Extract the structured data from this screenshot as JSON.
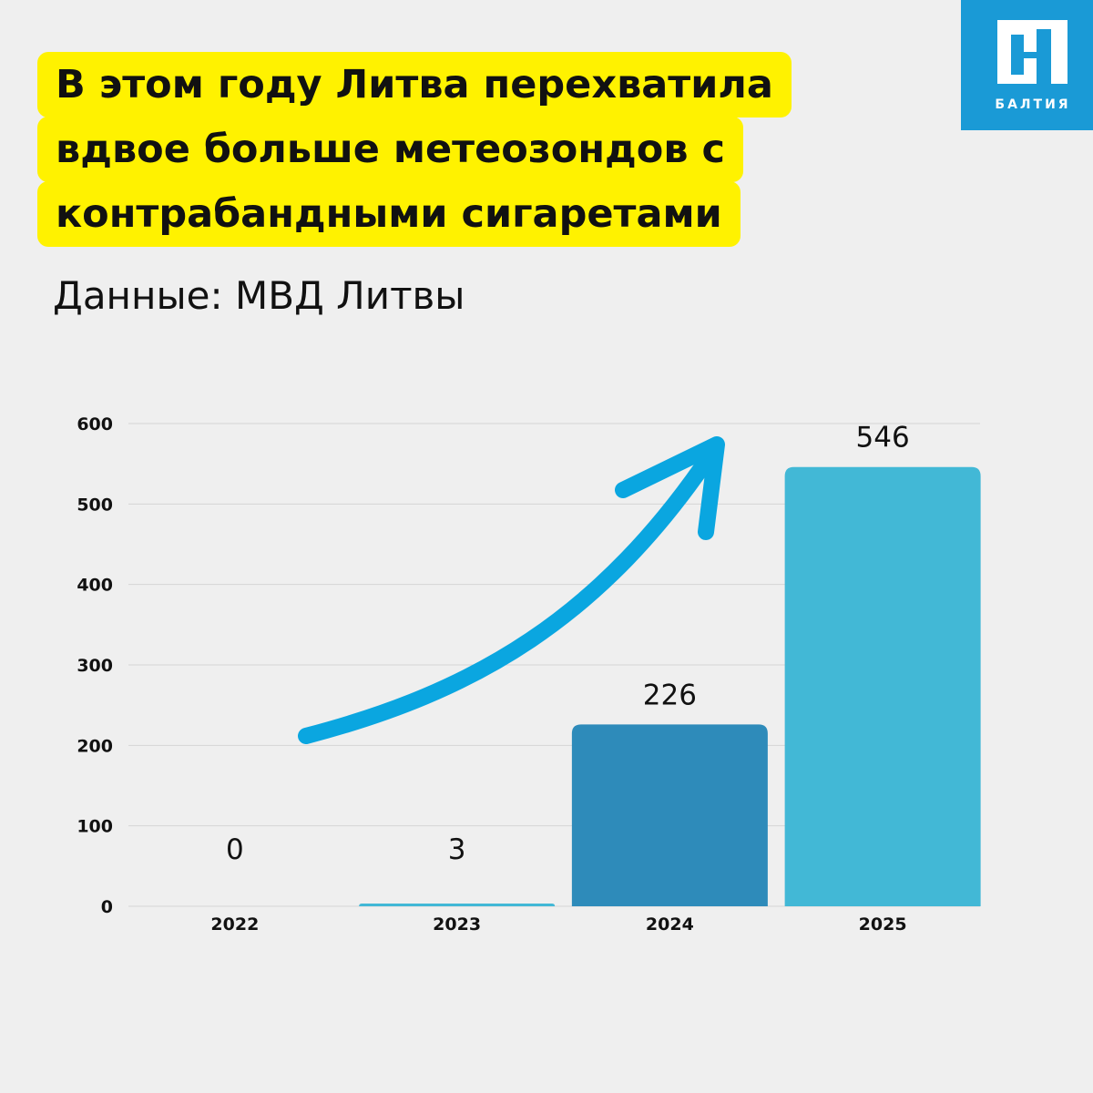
{
  "title_lines": [
    "В этом году Литва перехватила",
    "вдвое больше метеозондов с",
    "контрабандными сигаретами"
  ],
  "source": "Данные: МВД Литвы",
  "logo": {
    "text": "БАЛТИЯ",
    "color": "#1a9ad6"
  },
  "chart_data": {
    "type": "bar",
    "title": "В этом году Литва перехватила вдвое больше метеозондов с контрабандными сигаретами",
    "categories": [
      "2022",
      "2023",
      "2024",
      "2025"
    ],
    "values": [
      0,
      3,
      226,
      546
    ],
    "data_labels": [
      "0",
      "3",
      "226",
      "546"
    ],
    "bar_colors": [
      "#42b8d6",
      "#42b8d6",
      "#2e8bba",
      "#42b8d6"
    ],
    "ylim": [
      0,
      600
    ],
    "yticks": [
      0,
      100,
      200,
      300,
      400,
      500,
      600
    ],
    "grid": true,
    "annotation": "upward-trend-arrow",
    "arrow_color": "#0aa6e0"
  }
}
